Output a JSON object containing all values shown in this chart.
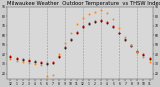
{
  "title": "Milwaukee Weather  Outdoor Temperature  vs THSW Index  per Hour  (24 Hours)",
  "title_fontsize": 3.8,
  "background_color": "#cccccc",
  "plot_bg_color": "#d8d8d8",
  "grid_color": "#999999",
  "text_color": "#000000",
  "ylim": [
    14,
    90
  ],
  "xlim": [
    -0.5,
    23.5
  ],
  "yticks": [
    20,
    30,
    40,
    50,
    60,
    70,
    80,
    90
  ],
  "ytick_labels": [
    "20",
    "30",
    "40",
    "50",
    "60",
    "70",
    "80",
    "90"
  ],
  "xtick_positions": [
    0,
    1,
    2,
    3,
    4,
    5,
    6,
    7,
    8,
    9,
    10,
    11,
    12,
    13,
    14,
    15,
    16,
    17,
    18,
    19,
    20,
    21,
    22,
    23
  ],
  "xtick_labels": [
    "12",
    "1",
    "2",
    "3",
    "4",
    "5",
    "6",
    "7",
    "8",
    "9",
    "10",
    "11",
    "12",
    "1",
    "2",
    "3",
    "4",
    "5",
    "6",
    "7",
    "8",
    "9",
    "10",
    "11"
  ],
  "vline_positions": [
    3,
    6,
    9,
    12,
    15,
    18,
    21
  ],
  "hours": [
    0,
    1,
    2,
    3,
    4,
    5,
    6,
    7,
    8,
    9,
    10,
    11,
    12,
    13,
    14,
    15,
    16,
    17,
    18,
    19,
    20,
    21,
    22,
    23
  ],
  "temp_outdoor": [
    38,
    36,
    35,
    34,
    33,
    32,
    31,
    32,
    38,
    48,
    56,
    64,
    70,
    73,
    75,
    76,
    74,
    70,
    63,
    56,
    50,
    44,
    40,
    36
  ],
  "thsw": [
    35,
    33,
    32,
    31,
    30,
    29,
    17,
    18,
    40,
    52,
    62,
    72,
    78,
    82,
    85,
    87,
    83,
    77,
    68,
    58,
    50,
    43,
    37,
    32
  ],
  "series_black": [
    37,
    35,
    34,
    33,
    32,
    31,
    30,
    31,
    37,
    47,
    55,
    63,
    69,
    72,
    74,
    75,
    73,
    69,
    62,
    55,
    49,
    43,
    39,
    35
  ],
  "color_temp": "#cc0000",
  "color_thsw": "#ff8800",
  "color_black": "#111111",
  "marker_size": 2.0,
  "ylabel_right": [
    "20",
    "30",
    "40",
    "50",
    "60",
    "70",
    "80",
    "90"
  ],
  "right_yticks": [
    20,
    30,
    40,
    50,
    60,
    70,
    80,
    90
  ]
}
